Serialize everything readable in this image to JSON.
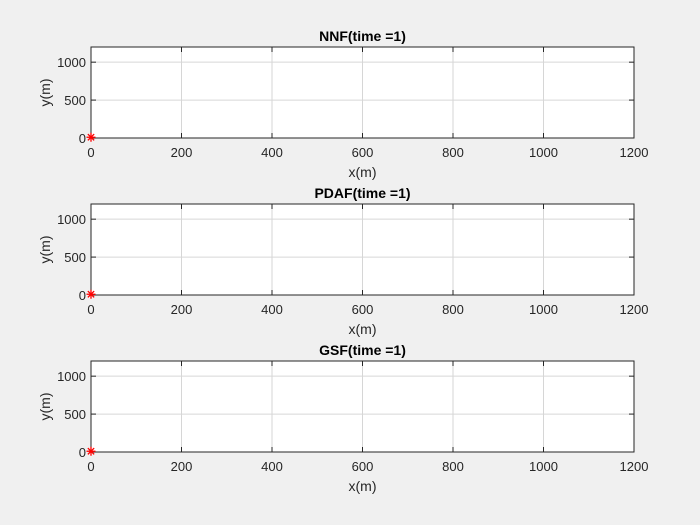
{
  "chart_data": [
    {
      "type": "scatter",
      "title": "NNF(time =1)",
      "xlabel": "x(m)",
      "ylabel": "y(m)",
      "xlim": [
        0,
        1200
      ],
      "ylim": [
        0,
        1200
      ],
      "xticks": [
        0,
        200,
        400,
        600,
        800,
        1000,
        1200
      ],
      "yticks": [
        0,
        500,
        1000
      ],
      "grid": true,
      "series": [
        {
          "x": [
            0
          ],
          "y": [
            10
          ],
          "color": "#ff0000",
          "marker": "asterisk"
        }
      ]
    },
    {
      "type": "scatter",
      "title": "PDAF(time =1)",
      "xlabel": "x(m)",
      "ylabel": "y(m)",
      "xlim": [
        0,
        1200
      ],
      "ylim": [
        0,
        1200
      ],
      "xticks": [
        0,
        200,
        400,
        600,
        800,
        1000,
        1200
      ],
      "yticks": [
        0,
        500,
        1000
      ],
      "grid": true,
      "series": [
        {
          "x": [
            0
          ],
          "y": [
            10
          ],
          "color": "#ff0000",
          "marker": "asterisk"
        }
      ]
    },
    {
      "type": "scatter",
      "title": "GSF(time =1)",
      "xlabel": "x(m)",
      "ylabel": "y(m)",
      "xlim": [
        0,
        1200
      ],
      "ylim": [
        0,
        1200
      ],
      "xticks": [
        0,
        200,
        400,
        600,
        800,
        1000,
        1200
      ],
      "yticks": [
        0,
        500,
        1000
      ],
      "grid": true,
      "series": [
        {
          "x": [
            0
          ],
          "y": [
            10
          ],
          "color": "#ff0000",
          "marker": "asterisk"
        }
      ]
    }
  ]
}
